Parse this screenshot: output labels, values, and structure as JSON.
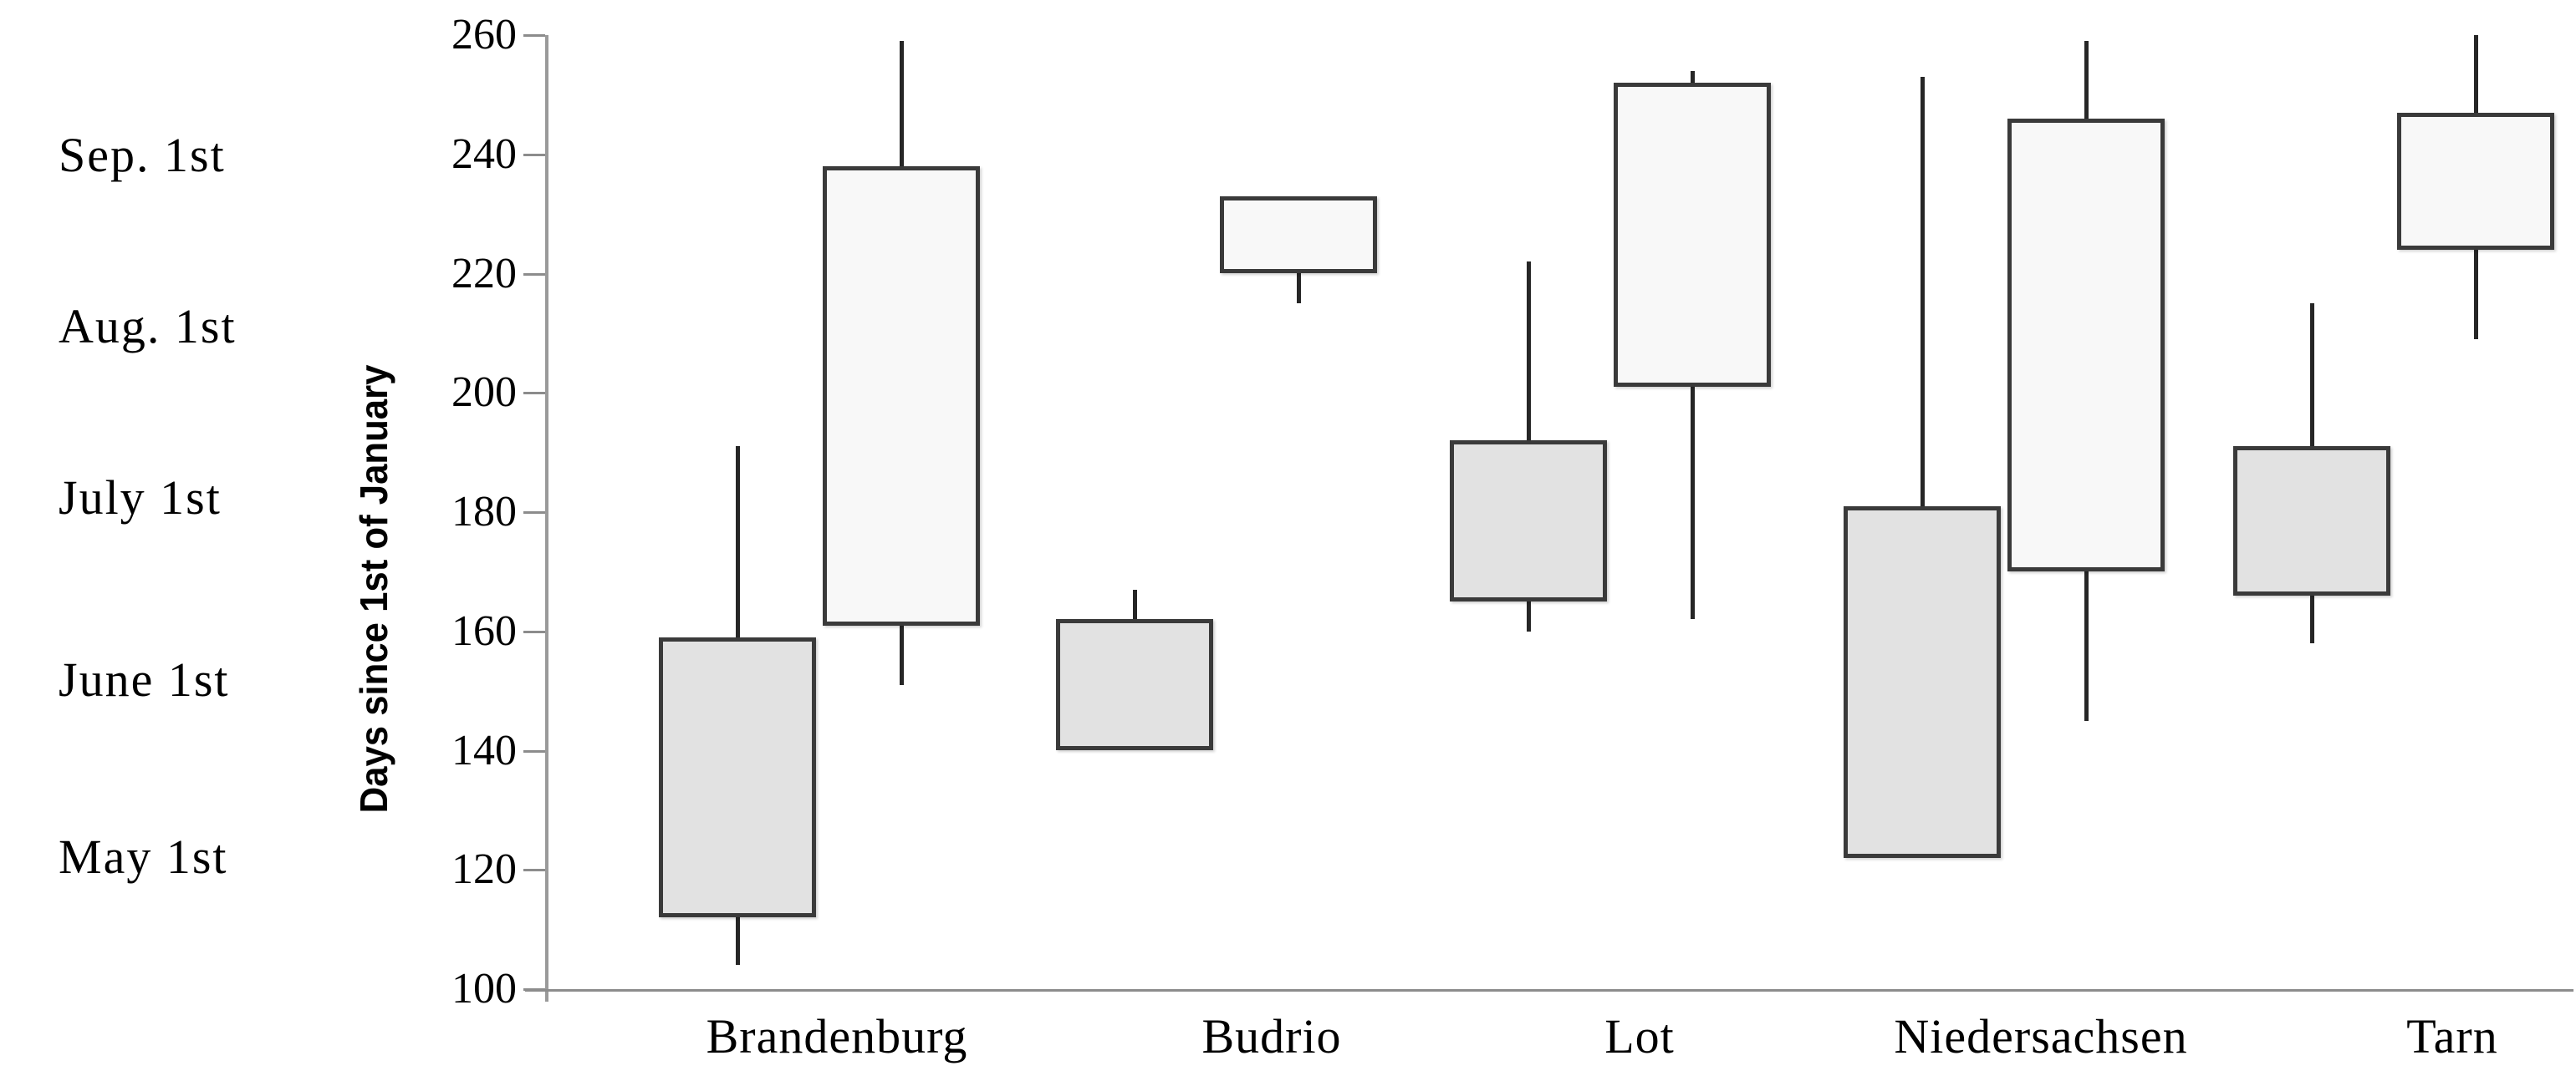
{
  "chart_data": {
    "type": "candlestick",
    "title": "",
    "ylabel": "Days since 1st of January",
    "xlabel": "",
    "ylim": [
      100,
      260
    ],
    "yticks": [
      260,
      240,
      220,
      200,
      180,
      160,
      140,
      120,
      100
    ],
    "grid": false,
    "legend": "none",
    "left_date_labels": [
      "Sep. 1st",
      "Aug. 1st",
      "July 1st",
      "June 1st",
      "May 1st"
    ],
    "categories": [
      "Brandenburg",
      "Budrio",
      "Lot",
      "Niedersachsen",
      "Tarn"
    ],
    "series": [
      {
        "id": "gray-left-box",
        "fill": "#e2e2e2",
        "points": [
          {
            "category": "Brandenburg",
            "whisker_low": 104,
            "box_low": 112,
            "box_high": 159,
            "whisker_high": 191
          },
          {
            "category": "Budrio",
            "whisker_low": 140,
            "box_low": 140,
            "box_high": 162,
            "whisker_high": 167
          },
          {
            "category": "Lot",
            "whisker_low": 160,
            "box_low": 165,
            "box_high": 192,
            "whisker_high": 222
          },
          {
            "category": "Niedersachsen",
            "whisker_low": 122,
            "box_low": 122,
            "box_high": 181,
            "whisker_high": 253
          },
          {
            "category": "Tarn",
            "whisker_low": 158,
            "box_low": 166,
            "box_high": 191,
            "whisker_high": 215
          }
        ]
      },
      {
        "id": "white-right-box",
        "fill": "#f8f8f8",
        "points": [
          {
            "category": "Brandenburg",
            "whisker_low": 151,
            "box_low": 161,
            "box_high": 238,
            "whisker_high": 259
          },
          {
            "category": "Budrio",
            "whisker_low": 215,
            "box_low": 220,
            "box_high": 233,
            "whisker_high": 233
          },
          {
            "category": "Lot",
            "whisker_low": 162,
            "box_low": 201,
            "box_high": 252,
            "whisker_high": 254
          },
          {
            "category": "Niedersachsen",
            "whisker_low": 145,
            "box_low": 170,
            "box_high": 246,
            "whisker_high": 259
          },
          {
            "category": "Tarn",
            "whisker_low": 209,
            "box_low": 224,
            "box_high": 247,
            "whisker_high": 260
          }
        ]
      }
    ],
    "colors": {
      "gray_fill": "#e2e2e2",
      "white_fill": "#f8f8f8",
      "box_border": "#3a3a3a",
      "whisker": "#262626",
      "axis": "#8c8c8c",
      "text": "#000000",
      "background": "#ffffff"
    }
  }
}
